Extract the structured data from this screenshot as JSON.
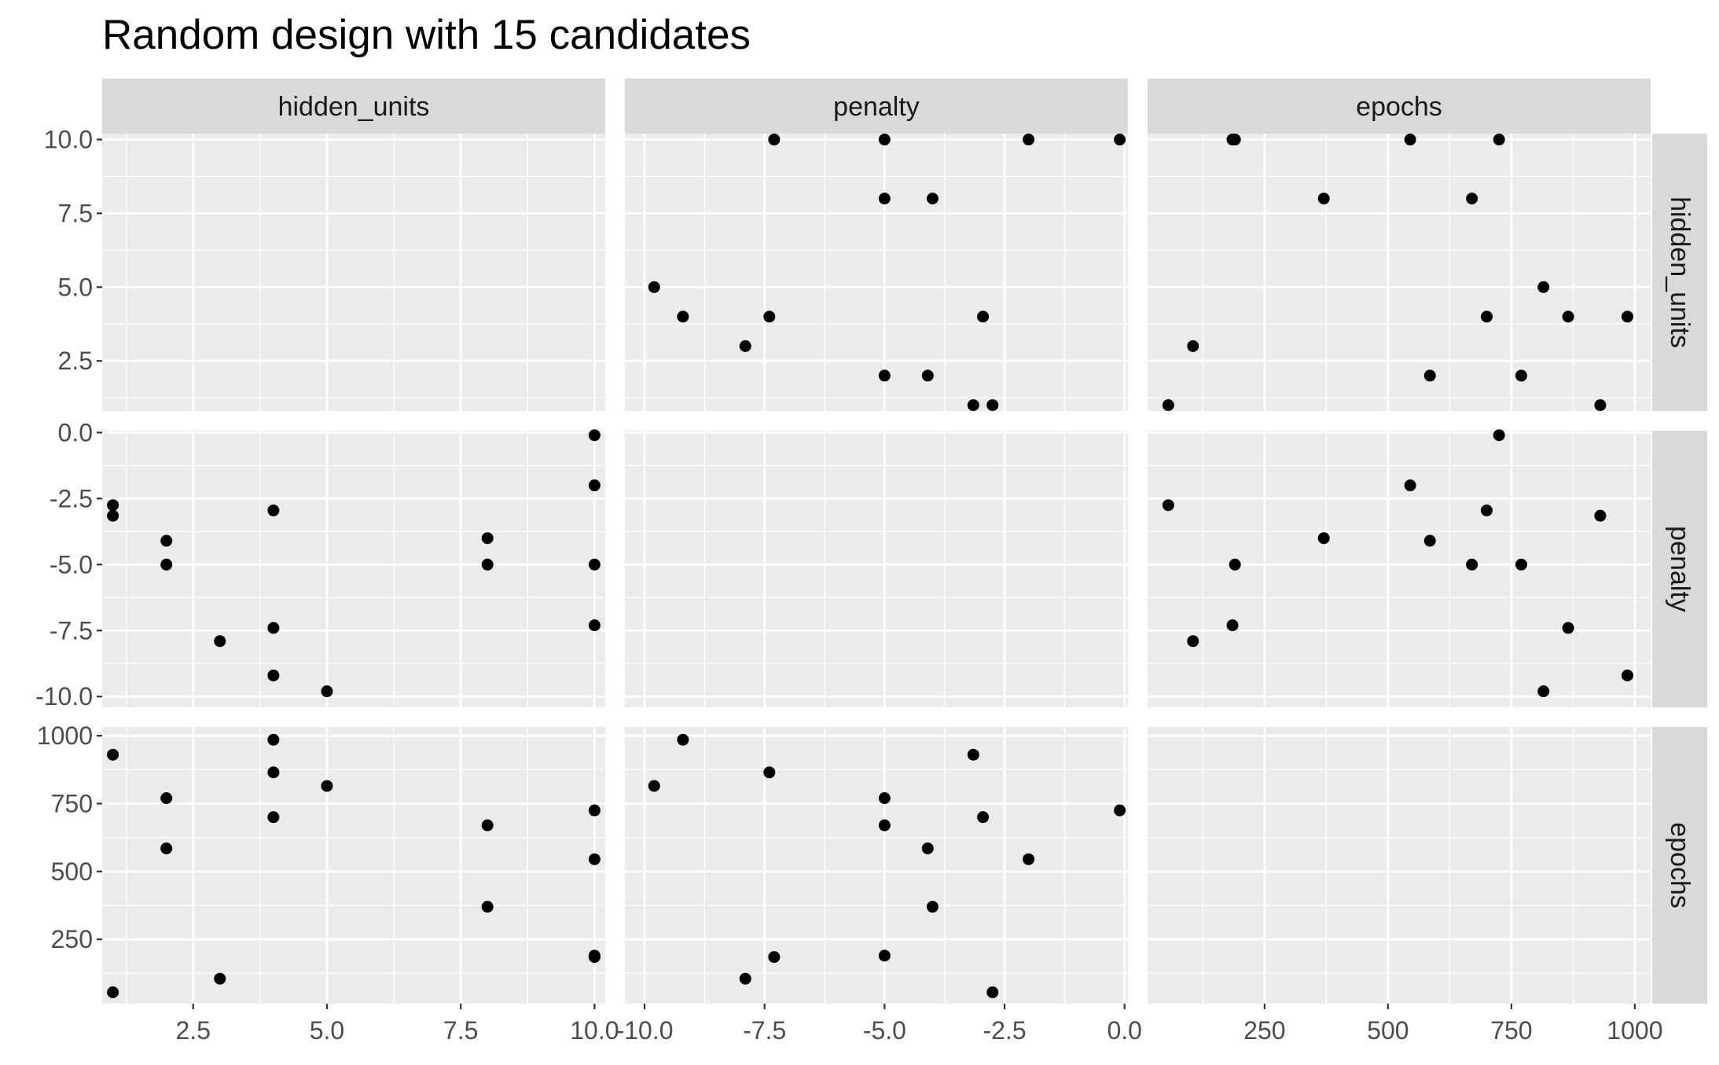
{
  "chart_data": {
    "type": "scatter",
    "title": "Random design with 15 candidates",
    "variables": [
      "hidden_units",
      "penalty",
      "epochs"
    ],
    "axes": {
      "hidden_units": {
        "range": [
          0.8,
          10.2
        ],
        "major_ticks": [
          2.5,
          5.0,
          7.5,
          10.0
        ],
        "tick_labels": [
          "2.5",
          "5.0",
          "7.5",
          "10.0"
        ],
        "minor_ticks": [
          1.25,
          3.75,
          6.25,
          8.75
        ]
      },
      "penalty": {
        "range": [
          -10.41,
          0.07
        ],
        "major_ticks": [
          -10.0,
          -7.5,
          -5.0,
          -2.5,
          0.0
        ],
        "tick_labels": [
          "-10.0",
          "-7.5",
          "-5.0",
          "-2.5",
          "0.0"
        ],
        "minor_ticks": [
          -8.75,
          -6.25,
          -3.75,
          -1.25
        ]
      },
      "epochs": {
        "range": [
          13,
          1032
        ],
        "major_ticks": [
          250,
          500,
          750,
          1000
        ],
        "tick_labels": [
          "250",
          "500",
          "750",
          "1000"
        ],
        "minor_ticks": [
          125,
          375,
          625,
          875
        ]
      }
    },
    "points": [
      {
        "hidden_units": 10,
        "penalty": -0.1,
        "epochs": 725
      },
      {
        "hidden_units": 10,
        "penalty": -2.0,
        "epochs": 545
      },
      {
        "hidden_units": 10,
        "penalty": -5.0,
        "epochs": 190
      },
      {
        "hidden_units": 10,
        "penalty": -7.3,
        "epochs": 185
      },
      {
        "hidden_units": 8,
        "penalty": -4.0,
        "epochs": 370
      },
      {
        "hidden_units": 8,
        "penalty": -5.0,
        "epochs": 670
      },
      {
        "hidden_units": 5,
        "penalty": -9.8,
        "epochs": 815
      },
      {
        "hidden_units": 4,
        "penalty": -2.95,
        "epochs": 700
      },
      {
        "hidden_units": 4,
        "penalty": -7.4,
        "epochs": 865
      },
      {
        "hidden_units": 4,
        "penalty": -9.2,
        "epochs": 985
      },
      {
        "hidden_units": 3,
        "penalty": -7.9,
        "epochs": 105
      },
      {
        "hidden_units": 2,
        "penalty": -4.1,
        "epochs": 585
      },
      {
        "hidden_units": 2,
        "penalty": -5.0,
        "epochs": 770
      },
      {
        "hidden_units": 1,
        "penalty": -2.75,
        "epochs": 55
      },
      {
        "hidden_units": 1,
        "penalty": -3.15,
        "epochs": 930
      }
    ]
  }
}
